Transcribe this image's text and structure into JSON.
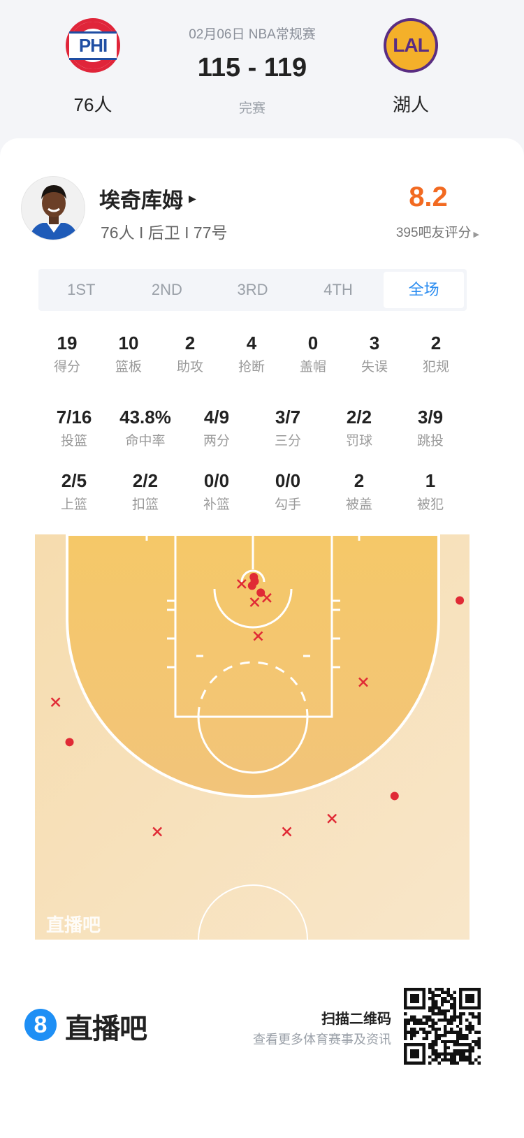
{
  "game": {
    "date_league": "02月06日 NBA常规赛",
    "score": "115 - 119",
    "status": "完赛",
    "home": {
      "name": "76人",
      "logo_text": "PHI",
      "color": "#e0253a"
    },
    "away": {
      "name": "湖人",
      "logo_text": "LAL",
      "color": "#5a2d82"
    }
  },
  "player": {
    "name": "埃奇库姆",
    "info": "76人 I 后卫 I 77号",
    "rating": "8.2",
    "rating_label": "395吧友评分",
    "rating_color": "#f26a21"
  },
  "tabs": [
    {
      "label": "1ST",
      "active": false
    },
    {
      "label": "2ND",
      "active": false
    },
    {
      "label": "3RD",
      "active": false
    },
    {
      "label": "4TH",
      "active": false
    },
    {
      "label": "全场",
      "active": true
    }
  ],
  "stats_row1": [
    {
      "value": "19",
      "label": "得分"
    },
    {
      "value": "10",
      "label": "篮板"
    },
    {
      "value": "2",
      "label": "助攻"
    },
    {
      "value": "4",
      "label": "抢断"
    },
    {
      "value": "0",
      "label": "盖帽"
    },
    {
      "value": "3",
      "label": "失误"
    },
    {
      "value": "2",
      "label": "犯规"
    }
  ],
  "stats_row2": [
    {
      "value": "7/16",
      "label": "投篮"
    },
    {
      "value": "43.8%",
      "label": "命中率"
    },
    {
      "value": "4/9",
      "label": "两分"
    },
    {
      "value": "3/7",
      "label": "三分"
    },
    {
      "value": "2/2",
      "label": "罚球"
    },
    {
      "value": "3/9",
      "label": "跳投"
    }
  ],
  "stats_row3": [
    {
      "value": "2/5",
      "label": "上篮"
    },
    {
      "value": "2/2",
      "label": "扣篮"
    },
    {
      "value": "0/0",
      "label": "补篮"
    },
    {
      "value": "0/0",
      "label": "勾手"
    },
    {
      "value": "2",
      "label": "被盖"
    },
    {
      "value": "1",
      "label": "被犯"
    }
  ],
  "shot_chart": {
    "watermark": "直播吧",
    "units": "feet from basket (x) / from baseline (y)",
    "made_color": "#e02a35",
    "shots": [
      {
        "x": 0.1,
        "y": 4.9,
        "made": true
      },
      {
        "x": 0.2,
        "y": 5.4,
        "made": true
      },
      {
        "x": -0.1,
        "y": 5.9,
        "made": true
      },
      {
        "x": 0.9,
        "y": 6.7,
        "made": true
      },
      {
        "x": 23.8,
        "y": 7.6,
        "made": true
      },
      {
        "x": -21.1,
        "y": 23.9,
        "made": true
      },
      {
        "x": 16.3,
        "y": 30.1,
        "made": true
      },
      {
        "x": -1.3,
        "y": 5.7,
        "made": false
      },
      {
        "x": 0.2,
        "y": 7.8,
        "made": false
      },
      {
        "x": 1.6,
        "y": 7.3,
        "made": false
      },
      {
        "x": 0.6,
        "y": 11.7,
        "made": false
      },
      {
        "x": 12.7,
        "y": 17.0,
        "made": false
      },
      {
        "x": -22.7,
        "y": 19.3,
        "made": false
      },
      {
        "x": -11.0,
        "y": 34.2,
        "made": false
      },
      {
        "x": 3.9,
        "y": 34.2,
        "made": false
      },
      {
        "x": 9.1,
        "y": 32.7,
        "made": false
      }
    ]
  },
  "footer": {
    "brand": "直播吧",
    "brand_icon": "8",
    "qr_title": "扫描二维码",
    "qr_subtitle": "查看更多体育赛事及资讯"
  }
}
